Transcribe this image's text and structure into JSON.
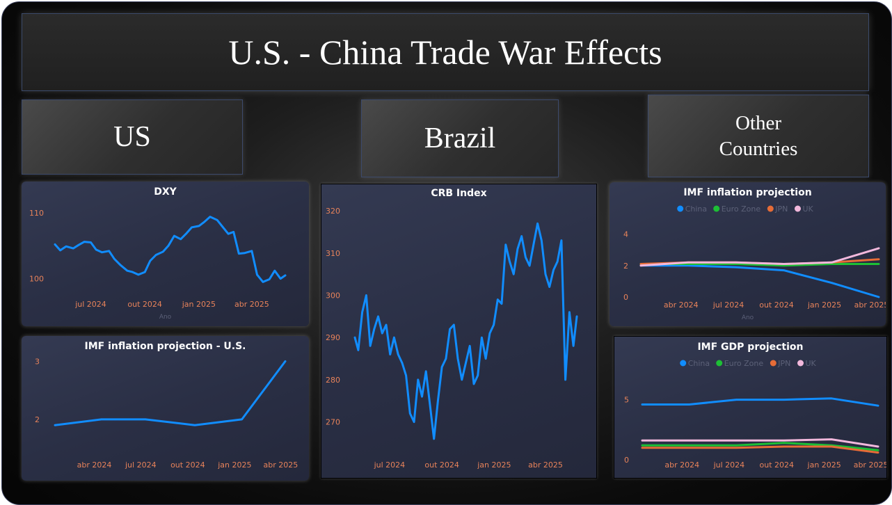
{
  "header": {
    "title": "U.S. - China Trade War Effects"
  },
  "nav": {
    "us": "US",
    "brazil": "Brazil",
    "other_line1": "Other",
    "other_line2": "Countries"
  },
  "colors": {
    "series_blue": "#118dff",
    "china": "#118dff",
    "euro": "#1dbf35",
    "jpn": "#e66c37",
    "uk": "#f2b8dc",
    "tick": "#e8835a"
  },
  "chart_data": [
    {
      "id": "dxy",
      "type": "line",
      "title": "DXY",
      "xlabel": "Ano",
      "ylabel": "",
      "ylim": [
        97,
        112
      ],
      "x": [
        "2024-05-01",
        "2024-05-10",
        "2024-05-20",
        "2024-06-01",
        "2024-06-10",
        "2024-06-20",
        "2024-07-01",
        "2024-07-10",
        "2024-07-20",
        "2024-08-01",
        "2024-08-10",
        "2024-08-20",
        "2024-09-01",
        "2024-09-10",
        "2024-09-20",
        "2024-10-01",
        "2024-10-10",
        "2024-10-20",
        "2024-11-01",
        "2024-11-10",
        "2024-11-20",
        "2024-12-01",
        "2024-12-10",
        "2024-12-20",
        "2025-01-01",
        "2025-01-10",
        "2025-01-20",
        "2025-02-01",
        "2025-02-10",
        "2025-02-20",
        "2025-03-01",
        "2025-03-10",
        "2025-03-20",
        "2025-04-01",
        "2025-04-10",
        "2025-04-20",
        "2025-05-01",
        "2025-05-10",
        "2025-05-20",
        "2025-05-28"
      ],
      "values": [
        105.2,
        104.3,
        104.9,
        104.6,
        105.1,
        105.6,
        105.5,
        104.4,
        104.0,
        104.2,
        103.0,
        102.1,
        101.2,
        101.0,
        100.6,
        101.0,
        102.7,
        103.6,
        104.1,
        105.0,
        106.5,
        106.0,
        106.8,
        107.8,
        108.0,
        108.6,
        109.4,
        108.9,
        107.9,
        106.8,
        107.1,
        103.8,
        103.9,
        104.2,
        100.6,
        99.5,
        99.9,
        101.2,
        100.0,
        100.5
      ],
      "xticks": [
        "jul 2024",
        "out 2024",
        "jan 2025",
        "abr 2025"
      ],
      "xtick_dates": [
        "2024-07-01",
        "2024-10-01",
        "2025-01-01",
        "2025-04-01"
      ],
      "yticks": [
        100,
        110
      ]
    },
    {
      "id": "us-inflation",
      "type": "line",
      "title": "IMF inflation projection - U.S.",
      "ylim": [
        1.4,
        3.1
      ],
      "x": [
        "2024-01-15",
        "2024-04-15",
        "2024-07-10",
        "2024-10-15",
        "2025-01-15",
        "2025-04-10"
      ],
      "values": [
        1.9,
        2.0,
        2.0,
        1.9,
        2.0,
        3.0
      ],
      "xticks": [
        "abr 2024",
        "jul 2024",
        "out 2024",
        "jan 2025",
        "abr 2025"
      ],
      "xtick_dates": [
        "2024-04-01",
        "2024-07-01",
        "2024-10-01",
        "2025-01-01",
        "2025-04-01"
      ],
      "yticks": [
        2,
        3
      ]
    },
    {
      "id": "crb",
      "type": "line",
      "title": "CRB Index",
      "ylim": [
        264,
        322
      ],
      "x": [
        "2024-05-01",
        "2024-05-07",
        "2024-05-14",
        "2024-05-21",
        "2024-05-28",
        "2024-06-04",
        "2024-06-11",
        "2024-06-18",
        "2024-06-25",
        "2024-07-02",
        "2024-07-09",
        "2024-07-16",
        "2024-07-23",
        "2024-07-30",
        "2024-08-06",
        "2024-08-13",
        "2024-08-20",
        "2024-08-27",
        "2024-09-03",
        "2024-09-10",
        "2024-09-17",
        "2024-09-24",
        "2024-10-01",
        "2024-10-08",
        "2024-10-15",
        "2024-10-22",
        "2024-10-29",
        "2024-11-05",
        "2024-11-12",
        "2024-11-19",
        "2024-11-26",
        "2024-12-03",
        "2024-12-10",
        "2024-12-17",
        "2024-12-24",
        "2024-12-31",
        "2025-01-07",
        "2025-01-14",
        "2025-01-21",
        "2025-01-28",
        "2025-02-04",
        "2025-02-11",
        "2025-02-18",
        "2025-02-25",
        "2025-03-04",
        "2025-03-11",
        "2025-03-18",
        "2025-03-25",
        "2025-04-01",
        "2025-04-08",
        "2025-04-15",
        "2025-04-22",
        "2025-04-29",
        "2025-05-06",
        "2025-05-13",
        "2025-05-20",
        "2025-05-26"
      ],
      "values": [
        290,
        287,
        296,
        300,
        288,
        292,
        295,
        291,
        293,
        286,
        290,
        286,
        284,
        281,
        272,
        270,
        280,
        276,
        282,
        274,
        266,
        275,
        283,
        285,
        292,
        293,
        285,
        280,
        284,
        288,
        279,
        281,
        290,
        285,
        291,
        293,
        299,
        298,
        312,
        308,
        305,
        311,
        314,
        309,
        307,
        312,
        317,
        313,
        305,
        302,
        306,
        308,
        313,
        280,
        296,
        288,
        295
      ],
      "xticks": [
        "jul 2024",
        "out 2024",
        "jan 2025",
        "abr 2025"
      ],
      "xtick_dates": [
        "2024-07-01",
        "2024-10-01",
        "2025-01-01",
        "2025-04-01"
      ],
      "yticks": [
        270,
        280,
        290,
        300,
        310,
        320
      ]
    },
    {
      "id": "imf-inflation",
      "type": "line",
      "title": "IMF inflation projection",
      "xlabel": "Ano",
      "ylim": [
        0,
        5
      ],
      "x": [
        "2024-01-15",
        "2024-04-15",
        "2024-07-15",
        "2024-10-15",
        "2025-01-15",
        "2025-04-15"
      ],
      "series": [
        {
          "name": "China",
          "values": [
            2.0,
            2.0,
            1.9,
            1.7,
            0.9,
            0.0
          ]
        },
        {
          "name": "Euro Zone",
          "values": [
            2.1,
            2.1,
            2.1,
            2.0,
            2.1,
            2.1
          ]
        },
        {
          "name": "JPN",
          "values": [
            2.1,
            2.2,
            2.2,
            2.1,
            2.2,
            2.4
          ]
        },
        {
          "name": "UK",
          "values": [
            2.0,
            2.2,
            2.2,
            2.1,
            2.2,
            3.1
          ]
        }
      ],
      "legend": "top-center",
      "xticks": [
        "abr 2024",
        "jul 2024",
        "out 2024",
        "jan 2025",
        "abr 2025"
      ],
      "xtick_dates": [
        "2024-04-01",
        "2024-07-01",
        "2024-10-01",
        "2025-01-01",
        "2025-04-01"
      ],
      "yticks": [
        0,
        2,
        4
      ]
    },
    {
      "id": "imf-gdp",
      "type": "line",
      "title": "IMF GDP projection",
      "ylim": [
        0,
        7
      ],
      "x": [
        "2024-01-15",
        "2024-04-15",
        "2024-07-15",
        "2024-10-15",
        "2025-01-15",
        "2025-04-15"
      ],
      "series": [
        {
          "name": "China",
          "values": [
            4.6,
            4.6,
            5.0,
            5.0,
            5.1,
            4.5
          ]
        },
        {
          "name": "Euro Zone",
          "values": [
            1.2,
            1.2,
            1.2,
            1.4,
            1.2,
            0.8
          ]
        },
        {
          "name": "JPN",
          "values": [
            1.0,
            1.0,
            1.0,
            1.1,
            1.1,
            0.6
          ]
        },
        {
          "name": "UK",
          "values": [
            1.6,
            1.6,
            1.6,
            1.6,
            1.7,
            1.1
          ]
        }
      ],
      "legend": "top-center",
      "xticks": [
        "abr 2024",
        "jul 2024",
        "out 2024",
        "jan 2025",
        "abr 2025"
      ],
      "xtick_dates": [
        "2024-04-01",
        "2024-07-01",
        "2024-10-01",
        "2025-01-01",
        "2025-04-01"
      ],
      "yticks": [
        0,
        5
      ]
    }
  ]
}
